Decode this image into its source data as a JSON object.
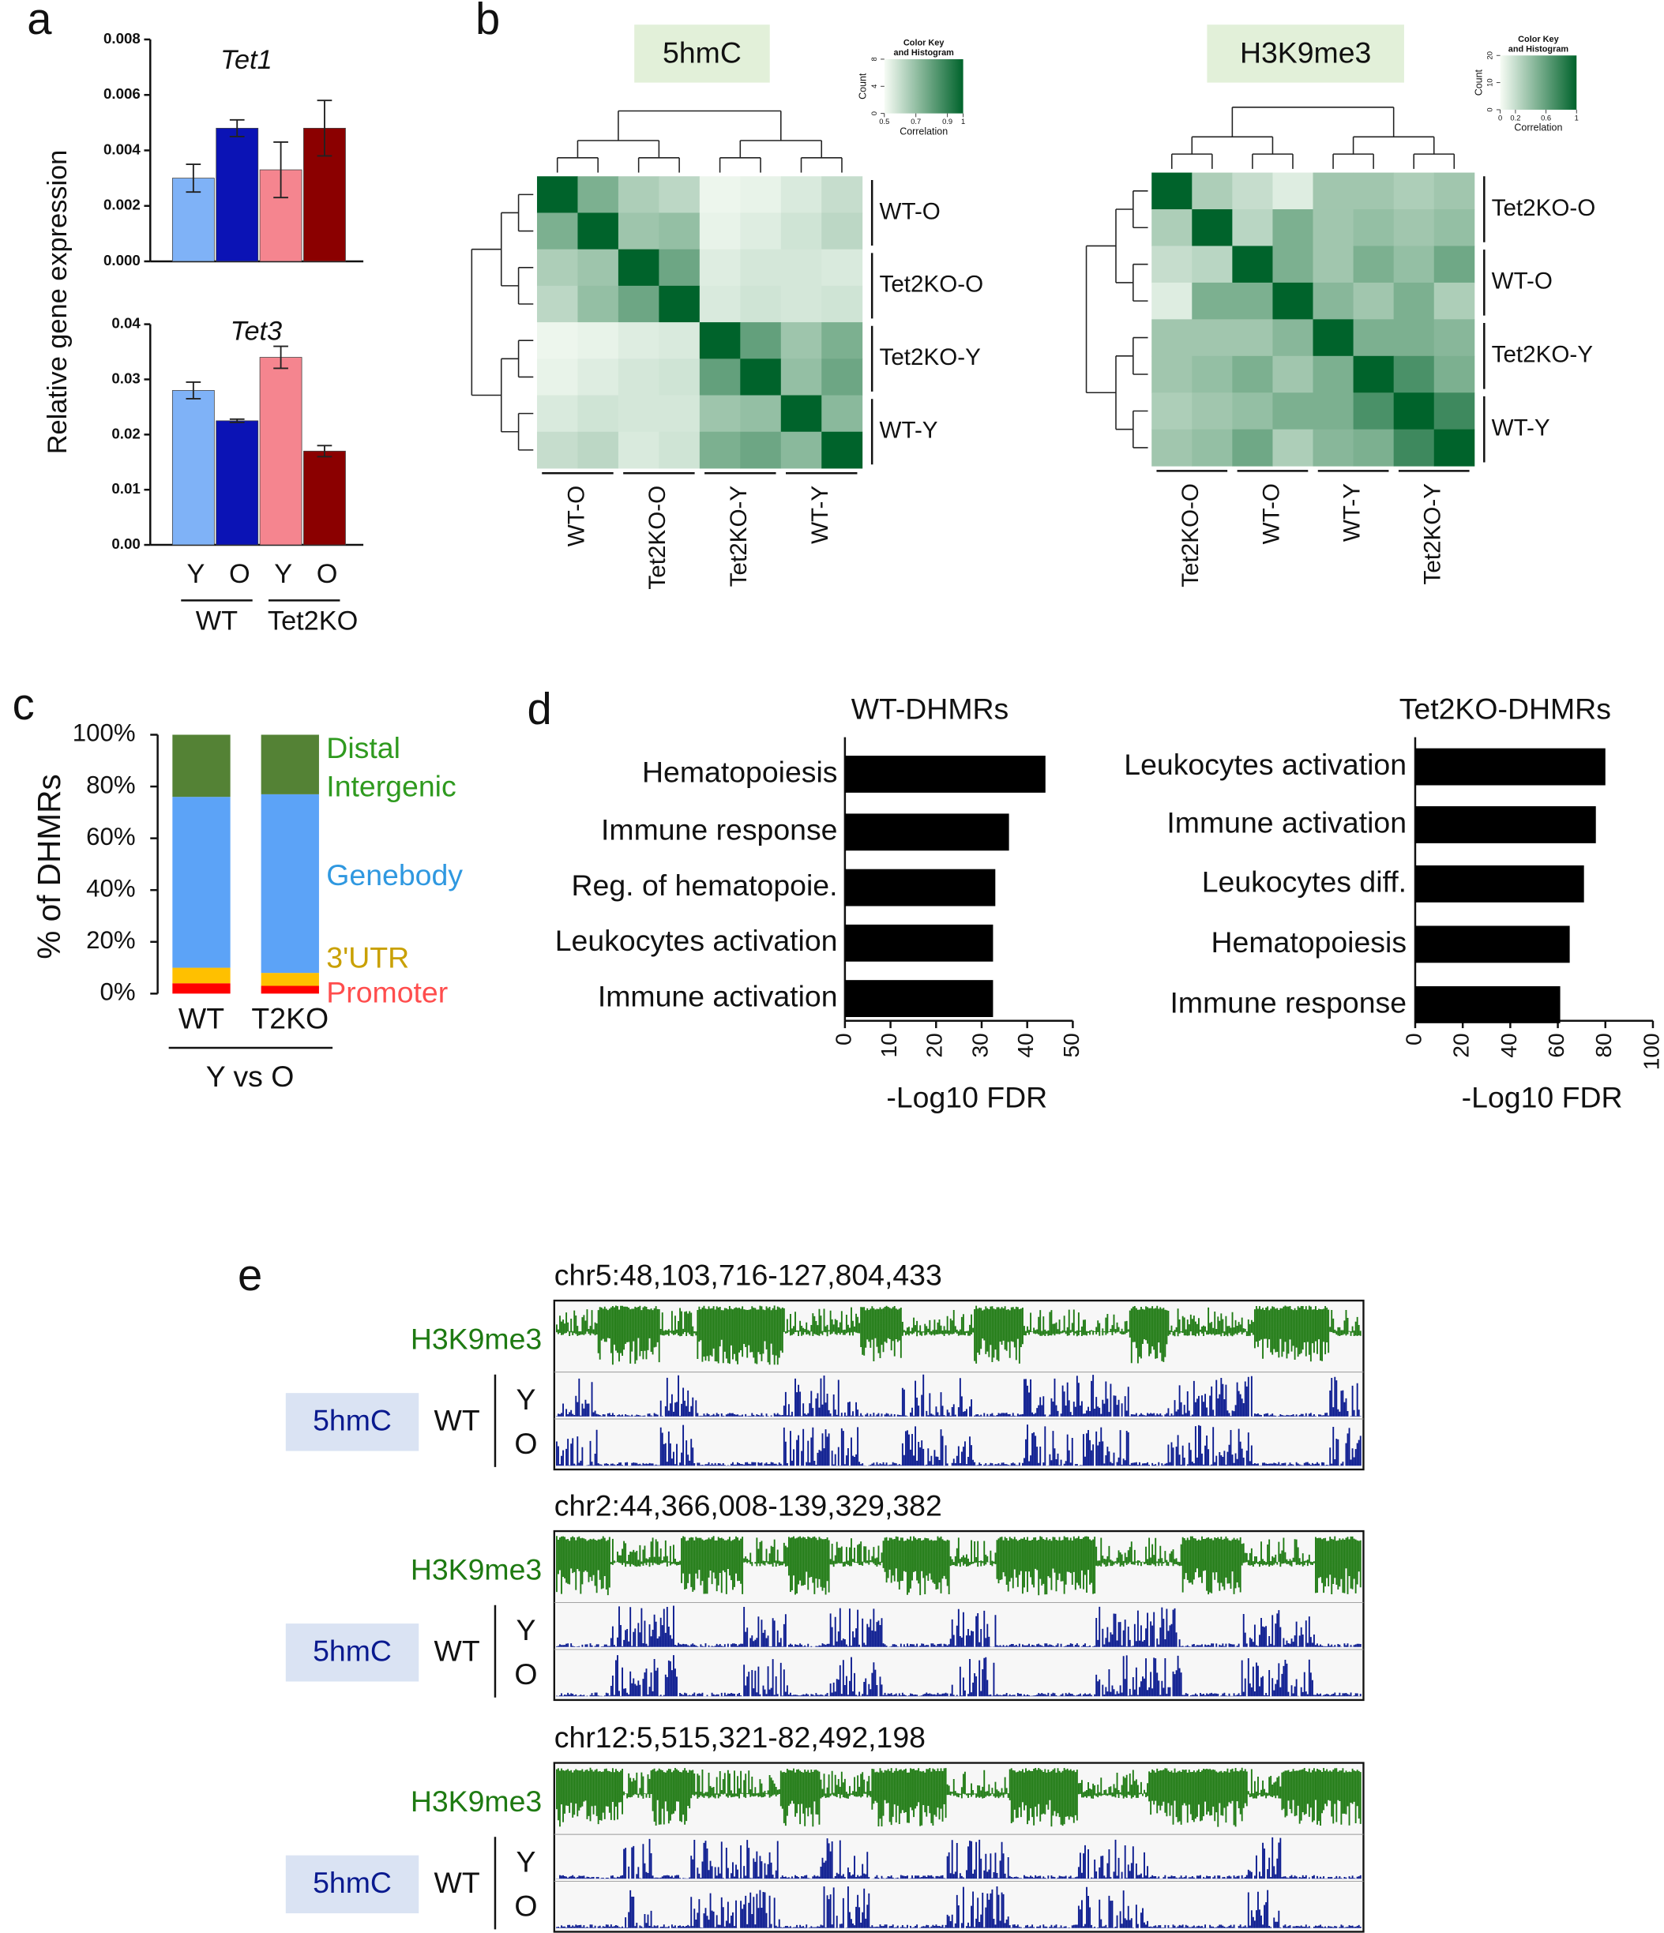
{
  "chart_data": [
    {
      "type": "bar",
      "panel": "a",
      "title": "Tet1",
      "ylabel": "Relative gene expression",
      "values": [
        0.003,
        0.0048,
        0.0033,
        0.0048
      ],
      "errors": [
        0.0005,
        0.0003,
        0.001,
        0.001
      ],
      "colors": [
        "#7fb2f7",
        "#0b13b5",
        "#f5858f",
        "#8b0000"
      ],
      "ylim": [
        0,
        0.008
      ],
      "yticks": [
        {
          "value": 0,
          "label": "0.000"
        },
        {
          "value": 0.002,
          "label": "0.002"
        },
        {
          "value": 0.004,
          "label": "0.004"
        },
        {
          "value": 0.006,
          "label": "0.006"
        },
        {
          "value": 0.008,
          "label": "0.008"
        }
      ]
    },
    {
      "type": "bar",
      "title": "Tet3",
      "categories": [
        "Y",
        "O",
        "Y",
        "O"
      ],
      "groups": [
        "WT",
        "Tet2KO"
      ],
      "values": [
        0.028,
        0.0225,
        0.034,
        0.017
      ],
      "errors": [
        0.0015,
        0.0003,
        0.002,
        0.001
      ],
      "colors": [
        "#7fb2f7",
        "#0b13b5",
        "#f5858f",
        "#8b0000"
      ],
      "ylim": [
        0,
        0.04
      ],
      "yticks": [
        {
          "value": 0,
          "label": "0.00"
        },
        {
          "value": 0.01,
          "label": "0.01"
        },
        {
          "value": 0.02,
          "label": "0.02"
        },
        {
          "value": 0.03,
          "label": "0.03"
        },
        {
          "value": 0.04,
          "label": "0.04"
        }
      ]
    },
    {
      "type": "heatmap",
      "panel": "b",
      "title": "5hmC",
      "row_groups": [
        "WT-O",
        "Tet2KO-O",
        "Tet2KO-Y",
        "WT-Y"
      ],
      "col_groups": [
        "WT-O",
        "Tet2KO-O",
        "Tet2KO-Y",
        "WT-Y"
      ],
      "matrix": [
        [
          1,
          0.75,
          0.65,
          0.62,
          0.52,
          0.53,
          0.56,
          0.6
        ],
        [
          0.75,
          1,
          0.68,
          0.7,
          0.53,
          0.55,
          0.58,
          0.62
        ],
        [
          0.65,
          0.68,
          1,
          0.78,
          0.55,
          0.57,
          0.57,
          0.56
        ],
        [
          0.62,
          0.7,
          0.78,
          1,
          0.56,
          0.58,
          0.57,
          0.58
        ],
        [
          0.52,
          0.53,
          0.55,
          0.56,
          1,
          0.8,
          0.68,
          0.75
        ],
        [
          0.53,
          0.55,
          0.57,
          0.58,
          0.8,
          1,
          0.7,
          0.78
        ],
        [
          0.56,
          0.58,
          0.57,
          0.57,
          0.68,
          0.7,
          1,
          0.72
        ],
        [
          0.6,
          0.62,
          0.56,
          0.58,
          0.75,
          0.78,
          0.72,
          1
        ]
      ],
      "color_low": "#f7fcf5",
      "color_high": "#00632b",
      "key": {
        "lines": [
          "Color Key",
          "and Histogram"
        ],
        "ylabel": "Count",
        "xlabel": "Correlation",
        "xlim": [
          0.5,
          1
        ],
        "xticks": [
          0.5,
          0.7,
          0.9,
          1
        ],
        "ylim": [
          0,
          8
        ],
        "yticks": [
          0,
          4,
          8
        ]
      }
    },
    {
      "type": "heatmap",
      "title": "H3K9me3",
      "row_groups": [
        "Tet2KO-O",
        "WT-O",
        "Tet2KO-Y",
        "WT-Y"
      ],
      "col_groups": [
        "Tet2KO-O",
        "WT-O",
        "WT-Y",
        "Tet2KO-Y"
      ],
      "matrix": [
        [
          1,
          0.3,
          0.2,
          0.1,
          0.35,
          0.35,
          0.3,
          0.35
        ],
        [
          0.3,
          1,
          0.25,
          0.5,
          0.35,
          0.4,
          0.35,
          0.4
        ],
        [
          0.2,
          0.25,
          1,
          0.5,
          0.35,
          0.5,
          0.4,
          0.55
        ],
        [
          0.1,
          0.5,
          0.5,
          1,
          0.45,
          0.35,
          0.5,
          0.3
        ],
        [
          0.35,
          0.35,
          0.35,
          0.45,
          1,
          0.5,
          0.5,
          0.45
        ],
        [
          0.35,
          0.4,
          0.5,
          0.35,
          0.5,
          1,
          0.7,
          0.5
        ],
        [
          0.3,
          0.35,
          0.4,
          0.5,
          0.5,
          0.7,
          1,
          0.75
        ],
        [
          0.35,
          0.4,
          0.55,
          0.3,
          0.45,
          0.5,
          0.75,
          1
        ]
      ],
      "color_low": "#f7fcf5",
      "color_high": "#00632b",
      "key": {
        "lines": [
          "Color Key",
          "and Histogram"
        ],
        "ylabel": "Count",
        "xlabel": "Correlation",
        "xlim": [
          0,
          1
        ],
        "xticks": [
          0,
          0.2,
          0.6,
          1
        ],
        "ylim": [
          0,
          20
        ],
        "yticks": [
          0,
          10,
          20
        ]
      }
    },
    {
      "type": "stacked_bar",
      "panel": "c",
      "ylabel": "% of DHMRs",
      "categories": [
        "WT",
        "T2KO"
      ],
      "group": "Y vs O",
      "ylim": [
        0,
        100
      ],
      "yticks": [
        {
          "value": 0,
          "label": "0%"
        },
        {
          "value": 20,
          "label": "20%"
        },
        {
          "value": 40,
          "label": "40%"
        },
        {
          "value": 60,
          "label": "60%"
        },
        {
          "value": 80,
          "label": "80%"
        },
        {
          "value": 100,
          "label": "100%"
        }
      ],
      "series": [
        {
          "name": "Promoter",
          "color": "#ff0000",
          "label_color": "#ff4d4d",
          "values": [
            4,
            3
          ]
        },
        {
          "name": "3'UTR",
          "color": "#ffc000",
          "label_color": "#c9a000",
          "values": [
            6,
            5
          ]
        },
        {
          "name": "Genebody",
          "color": "#5ca3f7",
          "label_color": "#2f98e0",
          "values": [
            66,
            69
          ]
        },
        {
          "name": "Distal Intergenic",
          "color": "#548235",
          "label_color": "#2f9a1f",
          "values": [
            24,
            23
          ]
        }
      ]
    },
    {
      "type": "hbar",
      "panel": "d",
      "title": "WT-DHMRs",
      "xlabel": "-Log10 FDR",
      "categories": [
        "Hematopoiesis",
        "Immune response",
        "Reg. of hematopoie.",
        "Leukocytes activation",
        "Immune activation"
      ],
      "values": [
        44,
        36,
        33,
        32.5,
        32.5
      ],
      "color": "#000000",
      "xlim": [
        0,
        50
      ],
      "xticks": [
        0,
        10,
        20,
        30,
        40,
        50
      ]
    },
    {
      "type": "hbar",
      "title": "Tet2KO-DHMRs",
      "xlabel": "-Log10 FDR",
      "categories": [
        "Leukocytes activation",
        "Immune activation",
        "Leukocytes diff.",
        "Hematopoiesis",
        "Immune response"
      ],
      "values": [
        80,
        76,
        71,
        65,
        61
      ],
      "color": "#000000",
      "xlim": [
        0,
        100
      ],
      "xticks": [
        0,
        20,
        40,
        60,
        80,
        100
      ]
    },
    {
      "type": "tracks",
      "panel": "e",
      "signal_color": "#1e7a12",
      "mark_color": "#0a1a8f",
      "regions": [
        {
          "locus": "chr5:48,103,716-127,804,433",
          "signal": "H3K9me3",
          "mark": "5hmC",
          "sample": "WT",
          "ages": [
            "Y",
            "O"
          ]
        },
        {
          "locus": "chr2:44,366,008-139,329,382",
          "signal": "H3K9me3",
          "mark": "5hmC",
          "sample": "WT",
          "ages": [
            "Y",
            "O"
          ]
        },
        {
          "locus": "chr12:5,515,321-82,492,198",
          "signal": "H3K9me3",
          "mark": "5hmC",
          "sample": "WT",
          "ages": [
            "Y",
            "O"
          ]
        }
      ]
    }
  ]
}
